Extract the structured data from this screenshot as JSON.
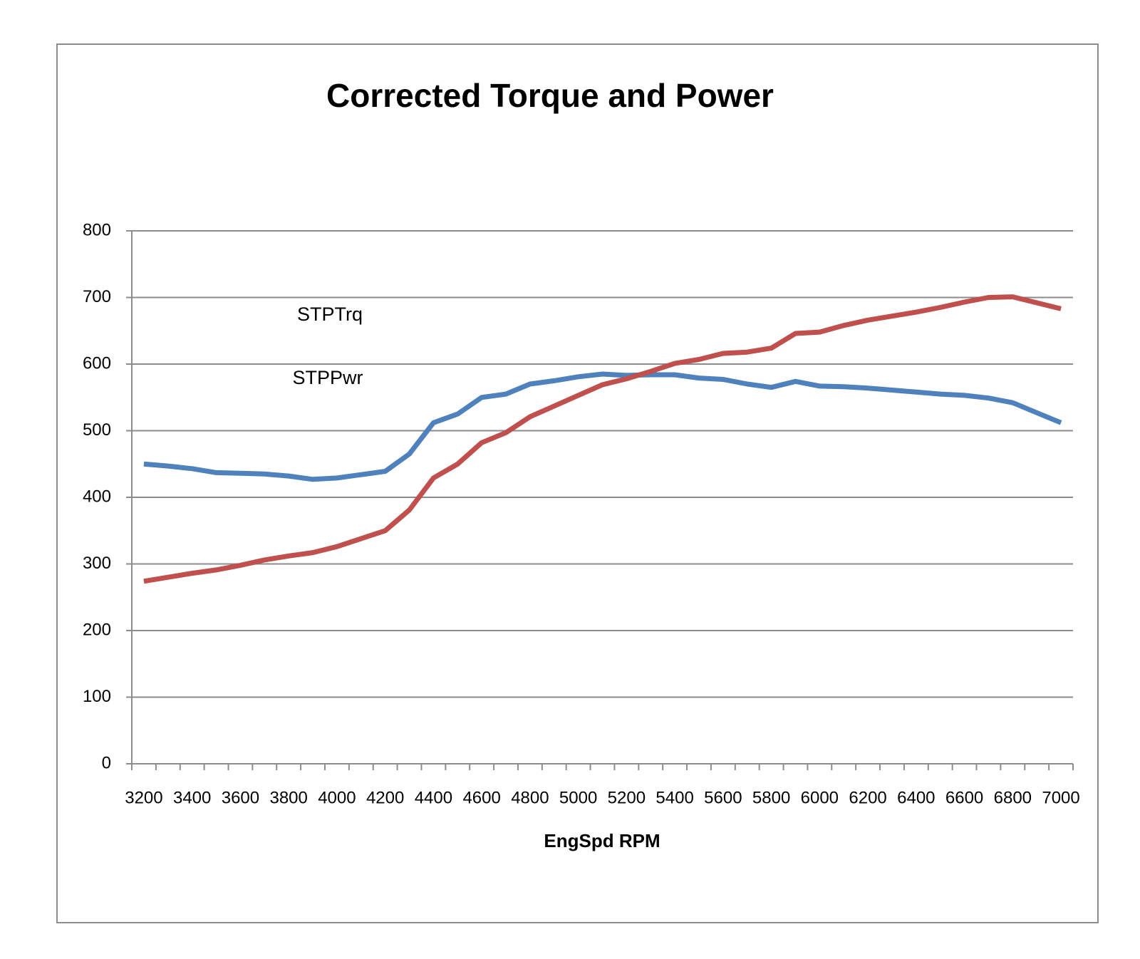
{
  "chart_data": {
    "type": "line",
    "title": "Corrected Torque and Power",
    "x_label": "EngSpd RPM",
    "categories": [
      "3200",
      null,
      "3400",
      null,
      "3600",
      null,
      "3800",
      null,
      "4000",
      null,
      "4200",
      null,
      "4400",
      null,
      "4600",
      null,
      "4800",
      null,
      "5000",
      null,
      "5200",
      null,
      "5400",
      null,
      "5600",
      null,
      "5800",
      null,
      "6000",
      null,
      "6200",
      null,
      "6400",
      null,
      "6600",
      null,
      "6800",
      null,
      "7000"
    ],
    "series": [
      {
        "name": "STPTrq",
        "color": "#4f81bd",
        "values": [
          450,
          447,
          443,
          437,
          436,
          435,
          432,
          427,
          429,
          434,
          439,
          465,
          512,
          525,
          550,
          555,
          570,
          575,
          581,
          585,
          583,
          584,
          584,
          579,
          577,
          570,
          565,
          574,
          567,
          566,
          564,
          561,
          558,
          555,
          553,
          549,
          542,
          527,
          512
        ]
      },
      {
        "name": "STPPwr",
        "color": "#c0504d",
        "values": [
          274,
          280,
          286,
          291,
          298,
          306,
          312,
          317,
          326,
          338,
          350,
          381,
          429,
          450,
          482,
          497,
          521,
          537,
          553,
          569,
          578,
          589,
          601,
          607,
          616,
          618,
          624,
          646,
          648,
          658,
          666,
          672,
          678,
          685,
          693,
          700,
          701,
          692,
          683
        ]
      }
    ],
    "ylim": [
      0,
      800
    ],
    "yticks": [
      0,
      100,
      200,
      300,
      400,
      500,
      600,
      700,
      800
    ],
    "grid": true
  }
}
